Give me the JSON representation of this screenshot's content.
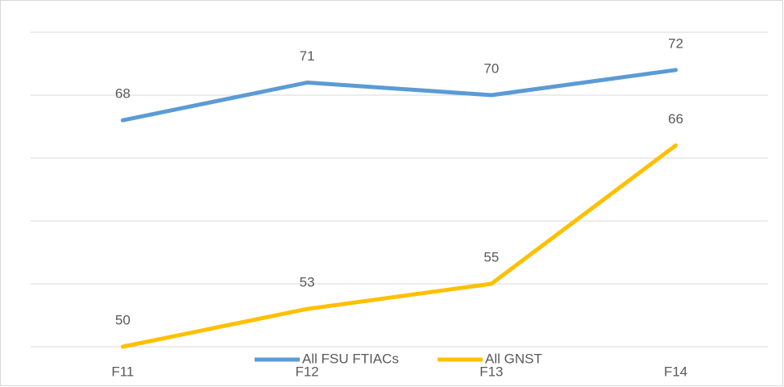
{
  "chart_data": {
    "type": "line",
    "categories": [
      "F11",
      "F12",
      "F13",
      "F14"
    ],
    "series": [
      {
        "name": "All FSU FTIACs",
        "color": "#5b9bd5",
        "values": [
          68,
          71,
          70,
          72
        ]
      },
      {
        "name": "All GNST",
        "color": "#ffc000",
        "values": [
          50,
          53,
          55,
          66
        ]
      }
    ],
    "ylim": [
      50,
      75
    ],
    "yticks": [
      50,
      55,
      60,
      65,
      70,
      75
    ],
    "grid": true,
    "legend": "bottom"
  }
}
